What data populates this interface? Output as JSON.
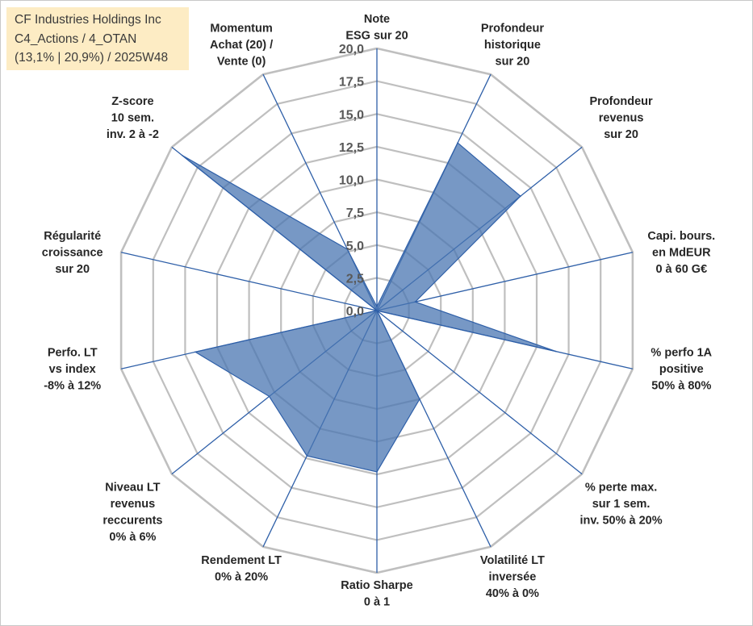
{
  "title_lines": [
    "CF Industries Holdings Inc",
    "C4_Actions / 4_OTAN",
    "(13,1% | 20,9%) / 2025W48"
  ],
  "colors": {
    "grid": "#bfbfbf",
    "spoke": "#2e5fa8",
    "fill": "#4a76b1",
    "title_bg": "#fdecc4"
  },
  "chart_data": {
    "type": "radar",
    "rmin": 0,
    "rmax": 20,
    "ticks": [
      "0,0",
      "2,5",
      "5,0",
      "7,5",
      "10,0",
      "12,5",
      "15,0",
      "17,5",
      "20,0"
    ],
    "tick_values": [
      0,
      2.5,
      5,
      7.5,
      10,
      12.5,
      15,
      17.5,
      20
    ],
    "grid_levels": 8,
    "categories": [
      [
        "Note",
        "ESG sur 20"
      ],
      [
        "Profondeur",
        "historique",
        "sur 20"
      ],
      [
        "Profondeur",
        "revenus",
        "sur 20"
      ],
      [
        "Capi. bours.",
        "en MdEUR",
        "0 à 60 G€"
      ],
      [
        "% perfo 1A",
        "positive",
        "50% à 80%"
      ],
      [
        "% perte max.",
        "sur 1 sem.",
        "inv. 50% à 20%"
      ],
      [
        "Volatilité LT",
        "inversée",
        "40% à 0%"
      ],
      [
        "Ratio Sharpe",
        "0 à 1"
      ],
      [
        "Rendement LT",
        "0% à 20%"
      ],
      [
        "Niveau LT",
        "revenus",
        "reccurents",
        "0% à 6%"
      ],
      [
        "Perfo. LT",
        "vs index",
        "-8% à 12%"
      ],
      [
        "Régularité",
        "croissance",
        "sur 20"
      ],
      [
        "Z-score",
        "10 sem.",
        "inv. 2 à -2"
      ],
      [
        "Momentum",
        "Achat (20) /",
        "Vente (0)"
      ]
    ],
    "series": [
      {
        "values": [
          0.3,
          14.2,
          14.0,
          3.0,
          14.0,
          0.0,
          7.5,
          12.3,
          12.3,
          10.5,
          14.2,
          0.0,
          19.0,
          5.2
        ]
      }
    ]
  }
}
